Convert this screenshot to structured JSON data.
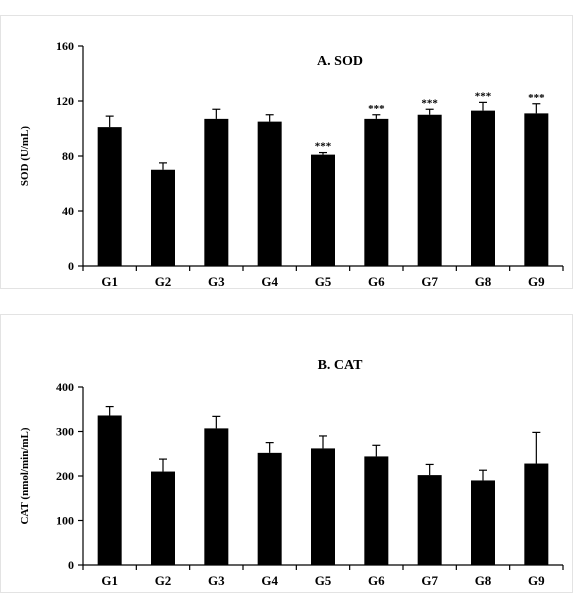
{
  "chart_data": [
    {
      "type": "bar",
      "title": "A. SOD",
      "ylabel": "SOD (U/mL)",
      "xlabel": "",
      "ylim": [
        0,
        160
      ],
      "yticks": [
        0,
        40,
        80,
        120,
        160
      ],
      "categories": [
        "G1",
        "G2",
        "G3",
        "G4",
        "G5",
        "G6",
        "G7",
        "G8",
        "G9"
      ],
      "values": [
        101,
        70,
        107,
        105,
        81,
        107,
        110,
        113,
        111
      ],
      "errors": [
        8,
        5,
        7,
        5,
        1.5,
        3,
        4,
        6,
        7
      ],
      "annotations": [
        "",
        "",
        "",
        "",
        "***",
        "***",
        "***",
        "***",
        "***"
      ],
      "grid": false,
      "bar_color": "#000000"
    },
    {
      "type": "bar",
      "title": "B. CAT",
      "ylabel": "CAT (nmol/min/mL)",
      "xlabel": "",
      "ylim": [
        0,
        400
      ],
      "yticks": [
        0,
        100,
        200,
        300,
        400
      ],
      "categories": [
        "G1",
        "G2",
        "G3",
        "G4",
        "G5",
        "G6",
        "G7",
        "G8",
        "G9"
      ],
      "values": [
        336,
        210,
        307,
        252,
        262,
        244,
        202,
        190,
        228
      ],
      "errors": [
        20,
        28,
        27,
        23,
        28,
        25,
        24,
        23,
        70
      ],
      "annotations": [
        "",
        "",
        "",
        "",
        "",
        "",
        "",
        "",
        ""
      ],
      "grid": false,
      "bar_color": "#000000"
    }
  ]
}
